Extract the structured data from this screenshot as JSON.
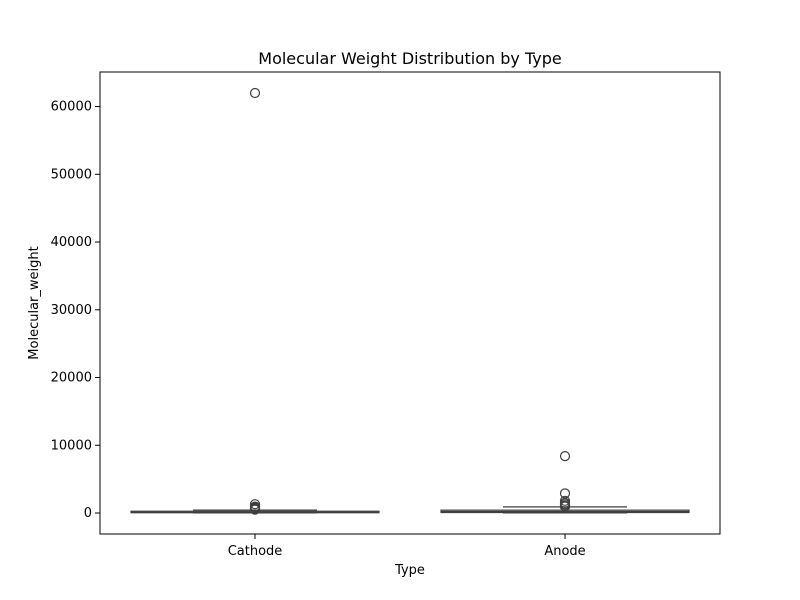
{
  "chart_data": {
    "type": "box",
    "title": "Molecular Weight Distribution by Type",
    "xlabel": "Type",
    "ylabel": "Molecular_weight",
    "categories": [
      "Cathode",
      "Anode"
    ],
    "ylim": [
      -3100,
      65100
    ],
    "yticks": [
      0,
      10000,
      20000,
      30000,
      40000,
      50000,
      60000
    ],
    "ytick_labels": [
      "0",
      "10000",
      "20000",
      "30000",
      "40000",
      "50000",
      "60000"
    ],
    "grid": false,
    "boxes": [
      {
        "category": "Cathode",
        "whisker_low": 20,
        "q1": 40,
        "median": 120,
        "q3": 260,
        "whisker_high": 420,
        "outliers": [
          62000,
          1300,
          950,
          820,
          700,
          600,
          500
        ]
      },
      {
        "category": "Anode",
        "whisker_low": 20,
        "q1": 70,
        "median": 220,
        "q3": 420,
        "whisker_high": 900,
        "outliers": [
          8400,
          2900,
          1800,
          1500,
          1300,
          1100,
          1000,
          950
        ]
      }
    ],
    "colors": {
      "box_fill": "#ffffff",
      "box_stroke": "#3f3f3f",
      "outlier_stroke": "#3f3f3f",
      "axis": "#000000"
    }
  }
}
